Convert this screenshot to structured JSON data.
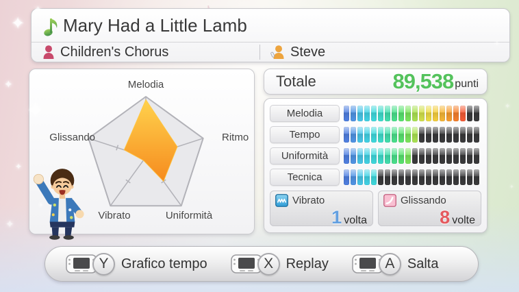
{
  "header": {
    "song_title": "Mary Had a Little Lamb",
    "singers": [
      {
        "name": "Children's Chorus",
        "icon": "chorus-singer-icon",
        "icon_color": "#c8496b"
      },
      {
        "name": "Steve",
        "icon": "mic-singer-icon",
        "icon_color": "#eda43e"
      }
    ]
  },
  "score": {
    "label": "Totale",
    "value": "89,538",
    "unit": "punti",
    "value_color": "#54c25c"
  },
  "chart_data": [
    {
      "type": "radar",
      "title": "Performance radar",
      "categories": [
        "Melodia",
        "Ritmo",
        "Uniformità",
        "Vibrato",
        "Glissando"
      ],
      "values": [
        0.95,
        0.55,
        0.5,
        0.07,
        0.38
      ],
      "range": [
        0,
        1
      ],
      "tick_fraction": 0.5,
      "grid_fill": "#e9e9ec",
      "grid_stroke": "#b2b2b8",
      "fill_gradient": [
        "#ffd24d",
        "#f68b1e"
      ]
    },
    {
      "type": "bar",
      "title": "Category meters",
      "categories": [
        "Melodia",
        "Tempo",
        "Uniformità",
        "Tecnica"
      ],
      "values": [
        18,
        11,
        10,
        5
      ],
      "ylim": [
        0,
        20
      ],
      "segments_total": 20,
      "palette": [
        "#5080e2",
        "#5095e6",
        "#48c6e8",
        "#42d3e6",
        "#3fdade",
        "#3fddcc",
        "#42dfae",
        "#4ae18c",
        "#58e46e",
        "#7ce65c",
        "#abe352",
        "#d4e24c",
        "#eedd46",
        "#f6cf3e",
        "#f7b737",
        "#f79d30",
        "#f7802c",
        "#f75c36",
        "#f64a34",
        "#f53a30"
      ],
      "empty_color": "#3a3a3c"
    }
  ],
  "stats": [
    {
      "icon": "vibrato-wave-icon",
      "label": "Vibrato",
      "value": "1",
      "unit": "volta",
      "value_color": "#64a0e0"
    },
    {
      "icon": "glissando-slide-icon",
      "label": "Glissando",
      "value": "8",
      "unit": "volte",
      "value_color": "#e4595e"
    }
  ],
  "footer": {
    "actions": [
      {
        "device": "gamepad",
        "button": "Y",
        "label": "Grafico tempo"
      },
      {
        "device": "gamepad",
        "button": "X",
        "label": "Replay"
      },
      {
        "device": "gamepad",
        "button": "A",
        "label": "Salta"
      }
    ]
  }
}
